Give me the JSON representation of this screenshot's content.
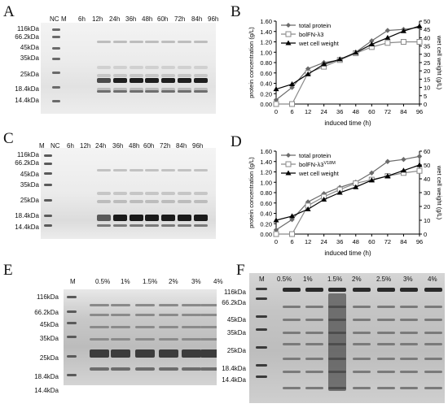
{
  "panels": {
    "A": {
      "letter": "A",
      "lanes": [
        "NC",
        "M",
        "6h",
        "12h",
        "24h",
        "36h",
        "48h",
        "60h",
        "72h",
        "84h",
        "96h"
      ],
      "markers": [
        "116kDa",
        "66.2kDa",
        "45kDa",
        "35kDa",
        "25kDa",
        "18.4kDa",
        "14.4kDa"
      ]
    },
    "C": {
      "letter": "C",
      "lanes": [
        "M",
        "NC",
        "6h",
        "12h",
        "24h",
        "36h",
        "48h",
        "60h",
        "72h",
        "84h",
        "96h"
      ],
      "markers": [
        "116kDa",
        "66.2kDa",
        "45kDa",
        "35kDa",
        "25kDa",
        "18.4kDa",
        "14.4kDa"
      ]
    },
    "E": {
      "letter": "E",
      "lanes": [
        "M",
        "0.5%",
        "1%",
        "1.5%",
        "2%",
        "3%",
        "4%"
      ],
      "markers": [
        "116kDa",
        "66.2kDa",
        "45kDa",
        "35kDa",
        "25kDa",
        "18.4kDa",
        "14.4kDa"
      ]
    },
    "F": {
      "letter": "F",
      "lanes": [
        "M",
        "0.5%",
        "1%",
        "1.5%",
        "2%",
        "2.5%",
        "3%",
        "4%"
      ],
      "markers": [
        "116kDa",
        "66.2kDa",
        "45kDa",
        "35kDa",
        "25kDa",
        "18.4kDa",
        "14.4kDa"
      ]
    }
  },
  "chart_data": [
    {
      "panel": "B",
      "type": "line",
      "x": [
        0,
        6,
        12,
        24,
        36,
        48,
        60,
        72,
        84,
        96
      ],
      "xlabel": "induced time (h)",
      "ylabel": "protein concentration (g/L)",
      "y2label": "wet cell weight (g/L)",
      "ylim": [
        0,
        1.6
      ],
      "y2lim": [
        0,
        50
      ],
      "yticks": [
        "0.00",
        "0.20",
        "0.40",
        "0.60",
        "0.80",
        "1.00",
        "1.20",
        "1.40",
        "1.60"
      ],
      "y2ticks": [
        "0",
        "5",
        "10",
        "15",
        "20",
        "25",
        "30",
        "35",
        "40",
        "45",
        "50"
      ],
      "series": [
        {
          "name": "total protein",
          "axis": "left",
          "marker": "diamond",
          "color": "#6b6b6b",
          "values": [
            0.08,
            0.32,
            0.68,
            0.8,
            0.85,
            1.0,
            1.22,
            1.42,
            1.44,
            1.48
          ]
        },
        {
          "name": "bolFN-λ3",
          "axis": "left",
          "marker": "square",
          "color": "#8a8a8a",
          "values": [
            0.0,
            0.0,
            0.6,
            0.72,
            0.85,
            0.98,
            1.1,
            1.18,
            1.2,
            1.2
          ]
        },
        {
          "name": "wet cell weight",
          "axis": "right",
          "marker": "triangle",
          "color": "#000000",
          "values": [
            9,
            12,
            18,
            24,
            27,
            31,
            36,
            40,
            44,
            47
          ]
        }
      ],
      "legend": "top-left"
    },
    {
      "panel": "D",
      "type": "line",
      "x": [
        0,
        6,
        12,
        24,
        36,
        48,
        60,
        72,
        84,
        96
      ],
      "xlabel": "induced time (h)",
      "ylabel": "protein concentration (g/L)",
      "y2label": "wet cell weight (g/L)",
      "ylim": [
        0,
        1.6
      ],
      "y2lim": [
        0,
        60
      ],
      "yticks": [
        "0.00",
        "0.20",
        "0.40",
        "0.60",
        "0.80",
        "1.00",
        "1.20",
        "1.40",
        "1.60"
      ],
      "y2ticks": [
        "0",
        "10",
        "20",
        "30",
        "40",
        "50",
        "60"
      ],
      "series": [
        {
          "name": "total protein",
          "axis": "left",
          "marker": "diamond",
          "color": "#6b6b6b",
          "values": [
            0.08,
            0.28,
            0.62,
            0.78,
            0.9,
            1.0,
            1.18,
            1.4,
            1.44,
            1.5
          ]
        },
        {
          "name": "bolFN-λ3",
          "sup": "V18M",
          "axis": "left",
          "marker": "square",
          "color": "#8a8a8a",
          "values": [
            0.0,
            0.0,
            0.55,
            0.72,
            0.86,
            0.98,
            1.05,
            1.12,
            1.18,
            1.22
          ]
        },
        {
          "name": "wet cell weight",
          "axis": "right",
          "marker": "triangle",
          "color": "#000000",
          "values": [
            10,
            13,
            18,
            25,
            30,
            34,
            39,
            42,
            46,
            50
          ]
        }
      ],
      "legend": "top-left"
    }
  ]
}
